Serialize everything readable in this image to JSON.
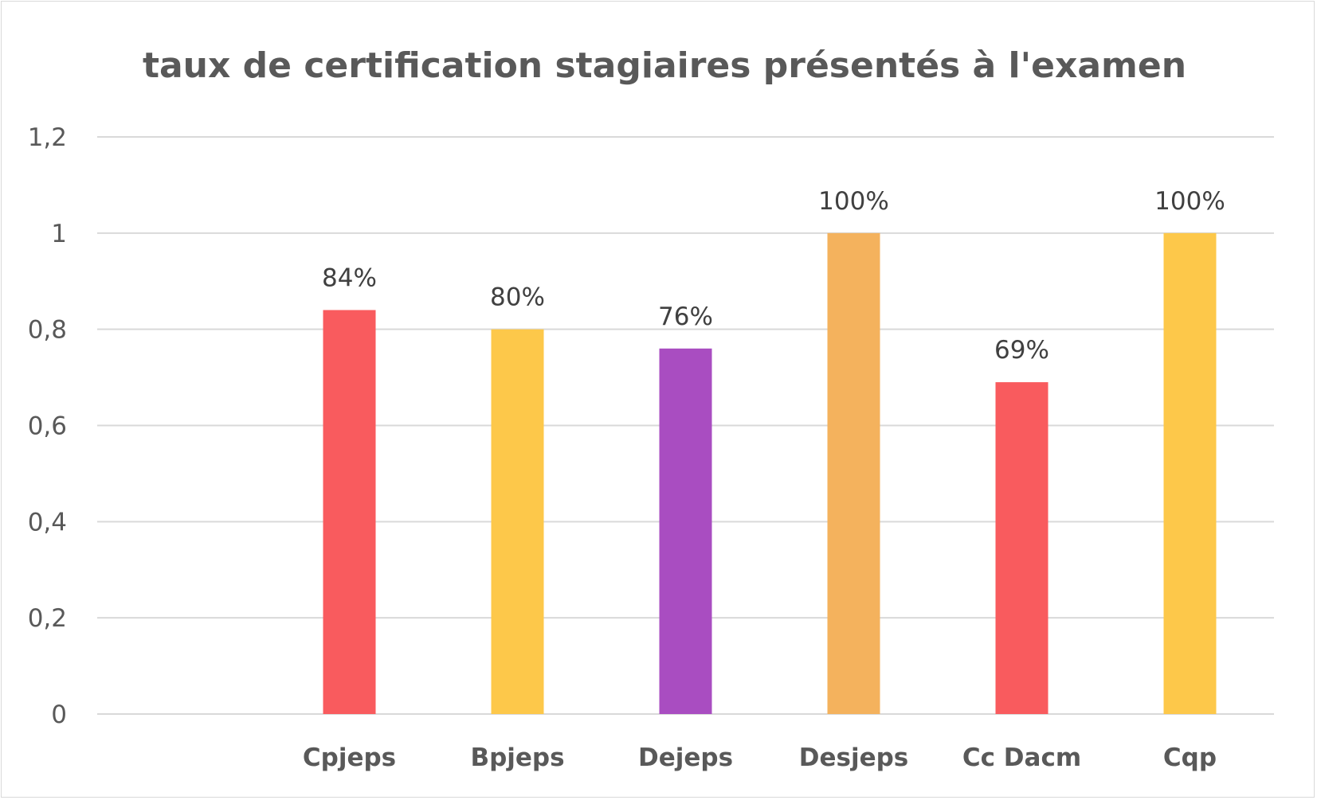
{
  "chart_data": {
    "type": "bar",
    "title": "taux de certification stagiaires présentés à l'examen",
    "xlabel": "",
    "ylabel": "",
    "ylim": [
      0,
      1.2
    ],
    "yticks": [
      0,
      0.2,
      0.4,
      0.6,
      0.8,
      1,
      1.2
    ],
    "ytick_labels": [
      "0",
      "0,2",
      "0,4",
      "0,6",
      "0,8",
      "1",
      "1,2"
    ],
    "grid": true,
    "legend": "none",
    "categories": [
      "",
      "Cpjeps",
      "Bpjeps",
      "Dejeps",
      "Desjeps",
      "Cc Dacm",
      "Cqp"
    ],
    "values": [
      null,
      0.84,
      0.8,
      0.76,
      1.0,
      0.69,
      1.0
    ],
    "data_labels": [
      "",
      "84%",
      "80%",
      "76%",
      "100%",
      "69%",
      "100%"
    ],
    "colors": [
      "#ffffff",
      "#f95b5e",
      "#fdc84a",
      "#a94dc1",
      "#f4b25d",
      "#f95b5e",
      "#fdc84a"
    ]
  }
}
